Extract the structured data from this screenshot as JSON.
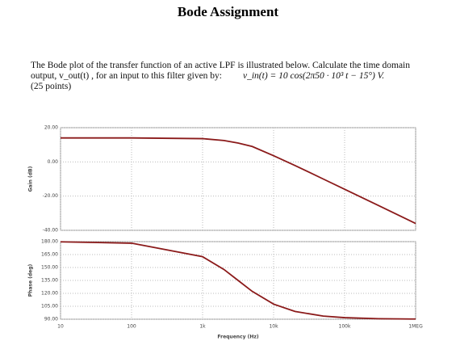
{
  "title": "Bode Assignment",
  "text": [
    "The Bode plot of the transfer function of an active LPF is illustrated below. Calculate the time domain",
    "output, v_out(t) , for an input to this filter given by:",
    "v_in(t) = 10 cos(2π50 · 10³ t − 15°)  V.",
    "(25 points)"
  ],
  "chart_data": [
    {
      "type": "line",
      "ylabel": "Gain (dB)",
      "log_x": true,
      "grid": true,
      "x": [
        10,
        100,
        1000,
        2000,
        3162,
        5000,
        10000,
        20000,
        50000,
        100000,
        300000,
        1000000
      ],
      "series": [
        {
          "color": "#8b1a1a",
          "values": [
            14,
            14.0,
            13.6,
            12.5,
            11.0,
            9.0,
            3.6,
            -2.1,
            -10.0,
            -16.0,
            -25.5,
            -36.0
          ]
        }
      ],
      "xlim": [
        10,
        1000000
      ],
      "ylim": [
        -40,
        20
      ],
      "yticks": [
        {
          "value": 20,
          "label": "20.00"
        },
        {
          "value": 0,
          "label": "0.00"
        },
        {
          "value": -20,
          "label": "-20.00"
        },
        {
          "value": -40,
          "label": "-40.00"
        }
      ]
    },
    {
      "type": "line",
      "ylabel": "Phase (deg)",
      "xlabel": "Frequency (Hz)",
      "log_x": true,
      "grid": true,
      "x": [
        10,
        100,
        1000,
        2000,
        3162,
        5000,
        10000,
        20000,
        50000,
        100000,
        300000,
        1000000
      ],
      "series": [
        {
          "color": "#8b1a1a",
          "values": [
            179.8,
            178.2,
            162.5,
            147.7,
            135,
            122.3,
            107.5,
            99.0,
            93.6,
            91.8,
            90.6,
            90.2
          ]
        }
      ],
      "xlim": [
        10,
        1000000
      ],
      "ylim": [
        90,
        180
      ],
      "xticks": [
        10,
        100,
        {
          "value": 1000,
          "label": "1k"
        },
        {
          "value": 10000,
          "label": "10k"
        },
        {
          "value": 100000,
          "label": "100k"
        },
        {
          "value": 1000000,
          "label": "1MEG"
        }
      ],
      "yticks": [
        {
          "value": 180,
          "label": "180.00"
        },
        {
          "value": 165,
          "label": "165.00"
        },
        {
          "value": 150,
          "label": "150.00"
        },
        {
          "value": 135,
          "label": "135.00"
        },
        {
          "value": 120,
          "label": "120.00"
        },
        {
          "value": 105,
          "label": "105.00"
        },
        {
          "value": 90,
          "label": "90.00"
        }
      ]
    }
  ]
}
